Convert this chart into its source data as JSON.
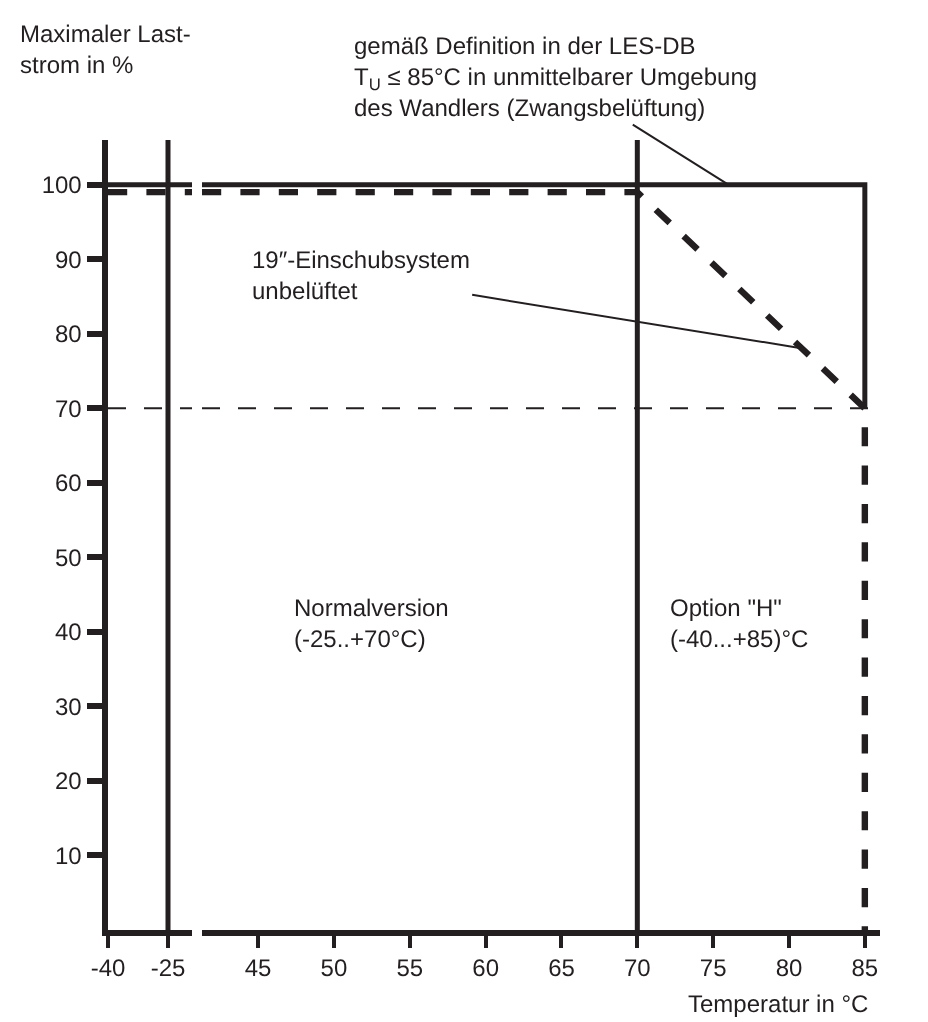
{
  "chart_data": [
    {
      "type": "line",
      "ylabel": "Maximaler Last-\nstrom in %",
      "xlim": [
        -40,
        -19
      ],
      "xticks": [
        -40,
        -25
      ],
      "ylim": [
        0,
        106
      ],
      "yticks": [
        10,
        20,
        30,
        40,
        50,
        60,
        70,
        80,
        90,
        100
      ],
      "marker": "none",
      "series": [
        {
          "x": [
            -40,
            -19
          ],
          "values": [
            100,
            100
          ],
          "color": "#231f20",
          "line_style": "solid"
        },
        {
          "x": [
            -40,
            -19
          ],
          "values": [
            99,
            99
          ],
          "color": "#231f20",
          "line_style": "dashed"
        }
      ],
      "ref_lines": [
        {
          "axis": "x",
          "value": -25,
          "color": "#231f20",
          "line_style": "solid"
        },
        {
          "axis": "y",
          "value": 70,
          "color": "#231f20",
          "line_style": "dashed"
        }
      ]
    },
    {
      "type": "line",
      "xlabel": "Temperatur in °C",
      "xlim": [
        41.3,
        86
      ],
      "xticks": [
        45,
        50,
        55,
        60,
        65,
        70,
        75,
        80,
        85
      ],
      "ylim": [
        0,
        106
      ],
      "tick_labels": "x",
      "marker": "none",
      "series": [
        {
          "x": [
            41.3,
            85,
            85
          ],
          "values": [
            100,
            100,
            70
          ],
          "color": "#231f20",
          "line_style": "solid"
        },
        {
          "x": [
            41.3,
            70,
            85,
            85
          ],
          "values": [
            99,
            99,
            70,
            0
          ],
          "color": "#231f20",
          "line_style": "dashed"
        }
      ],
      "ref_lines": [
        {
          "axis": "x",
          "value": 70,
          "color": "#231f20",
          "line_style": "solid"
        },
        {
          "axis": "y",
          "value": 70,
          "color": "#231f20",
          "line_style": "dashed"
        }
      ],
      "annotations": [
        {
          "text": "gemäß Definition in der LES-DB\nT$_{U}$ ≤ 85°C in unmittelbarer Umgebung\ndes Wandlers (Zwangsbelüftung)",
          "x": 76,
          "y": 100
        },
        {
          "text": "19″-Einschubsystem\nunbelüftet",
          "x": 81,
          "y": 78
        },
        "Normalversion\n(-25..+70°C)",
        "Option \"H\"\n(-40...+85)°C"
      ]
    }
  ]
}
